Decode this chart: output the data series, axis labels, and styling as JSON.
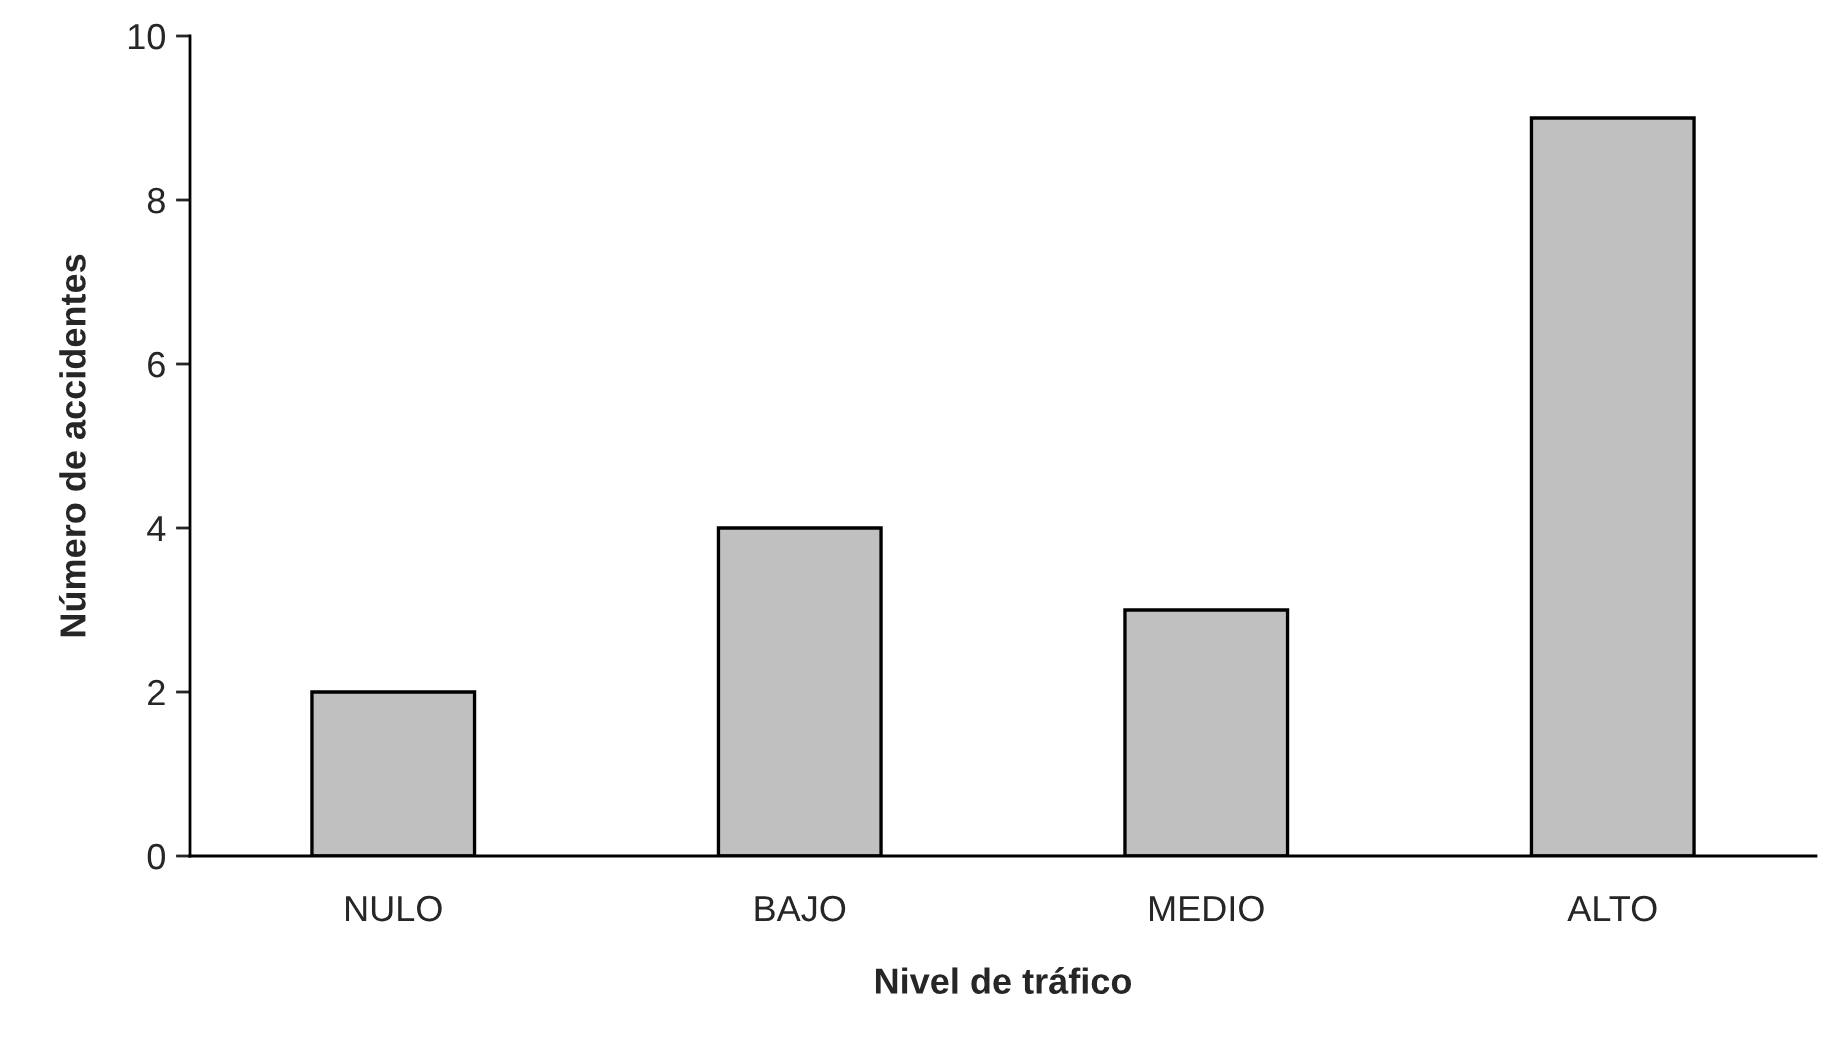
{
  "chart_data": {
    "type": "bar",
    "xlabel": "Nivel de tráfico",
    "ylabel": "Número de accidentes",
    "categories": [
      "NULO",
      "BAJO",
      "MEDIO",
      "ALTO"
    ],
    "values": [
      2,
      4,
      3,
      9
    ],
    "color": "#c0c0c0",
    "ylim": [
      0,
      10
    ],
    "yticks": [
      0,
      2,
      4,
      6,
      8,
      10
    ],
    "grid": false,
    "legend": false
  }
}
